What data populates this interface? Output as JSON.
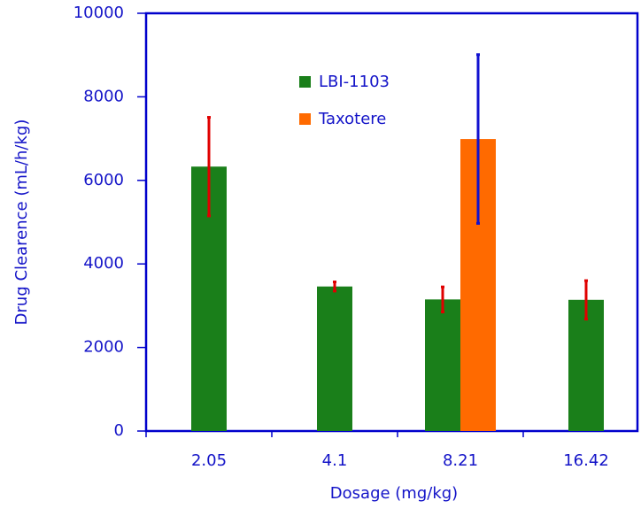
{
  "chart_data": {
    "type": "bar",
    "x_label": "Dosage (mg/kg)",
    "y_label": "Drug Clearence (mL/h/kg)",
    "categories": [
      "2.05",
      "4.1",
      "8.21",
      "16.42"
    ],
    "series": [
      {
        "name": "LBI-1103",
        "color": "#1a7f1a",
        "error_color": "#e00000",
        "values": [
          6330,
          3460,
          3150,
          3140
        ],
        "errors": [
          1180,
          110,
          300,
          460
        ]
      },
      {
        "name": "Taxotere",
        "color": "#ff6a00",
        "error_color": "#1010d0",
        "values": [
          null,
          null,
          6990,
          null
        ],
        "errors": [
          null,
          null,
          2020,
          null
        ]
      }
    ],
    "ylim": [
      0,
      10000
    ],
    "yticks": [
      0,
      2000,
      4000,
      6000,
      8000,
      10000
    ],
    "grid": false
  }
}
